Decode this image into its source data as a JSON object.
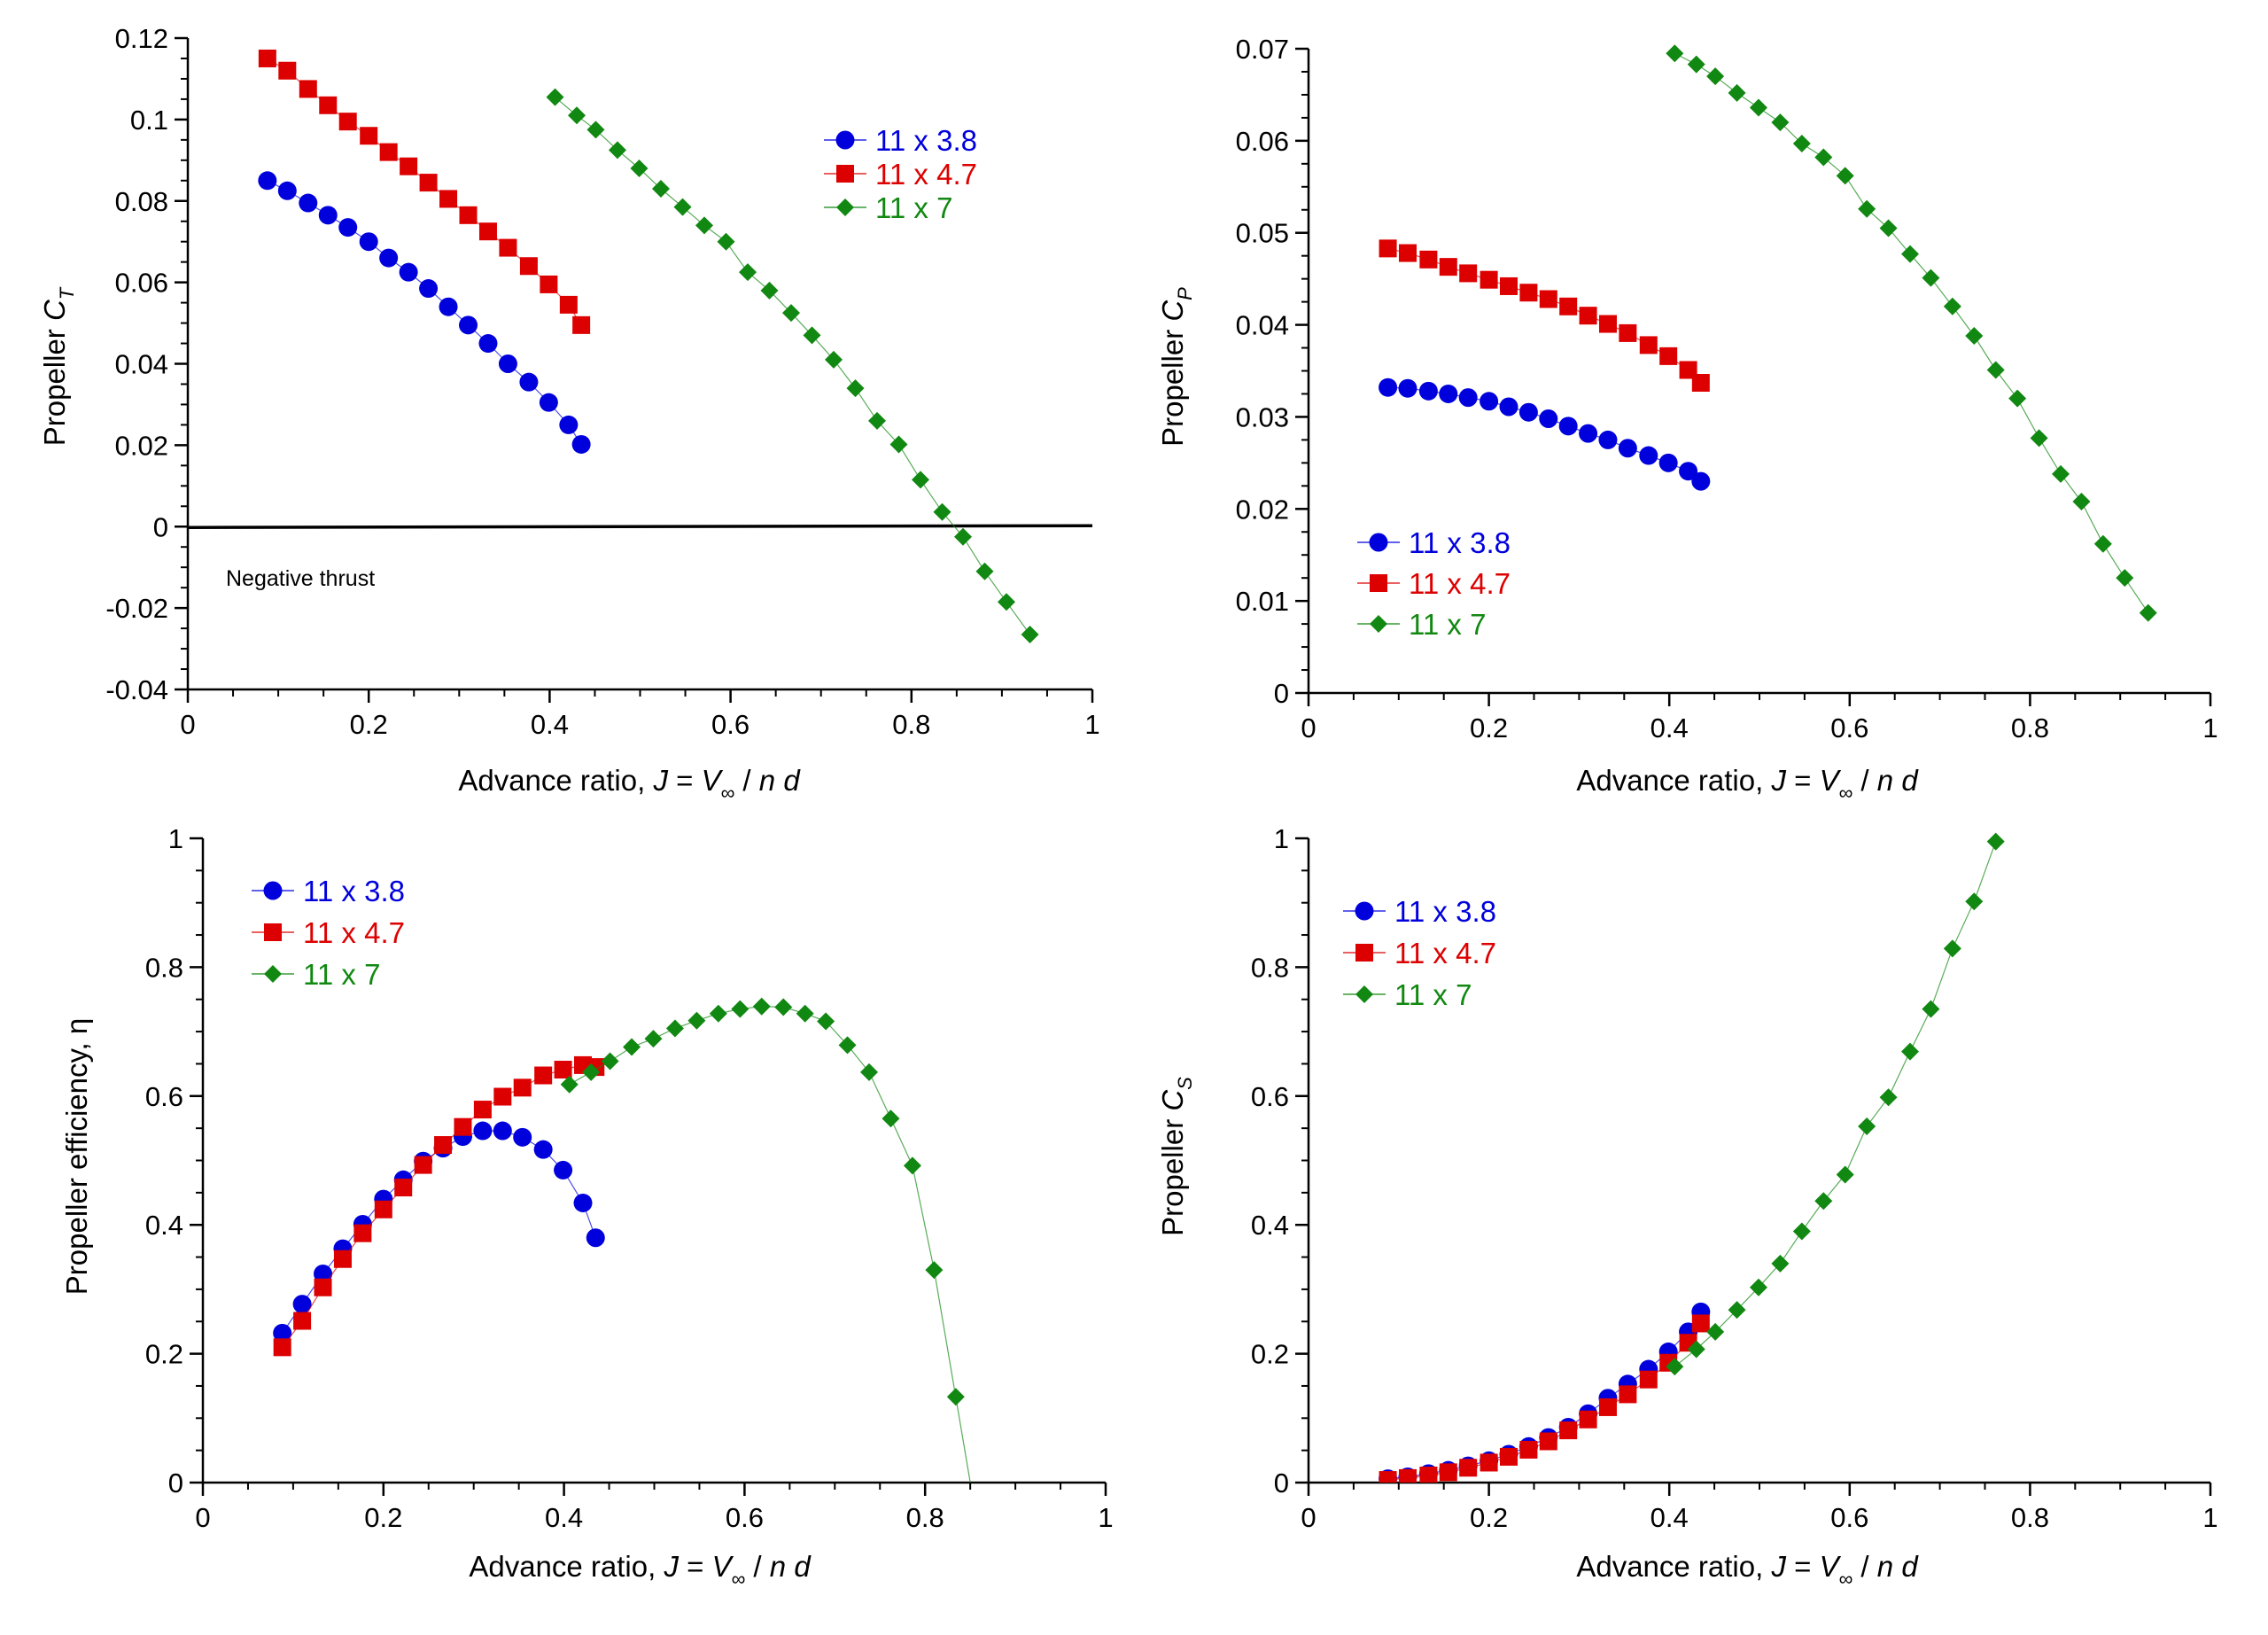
{
  "colors": {
    "s38": "#0000dd",
    "s47": "#dd0000",
    "s7": "#118811"
  },
  "chart_data": [
    {
      "type": "scatter",
      "panel": "top-left",
      "xlabel": {
        "pre": "Advance ratio, ",
        "J": "J",
        "eq1": " = ",
        "V": "V",
        "sub": "∞",
        "eq2": " / ",
        "n": "n",
        "sp": " ",
        "d": "d"
      },
      "ylabel": {
        "pre": "Propeller ",
        "C": "C",
        "sub": "T"
      },
      "xlim": [
        0,
        1
      ],
      "ylim": [
        -0.04,
        0.12
      ],
      "xticks": [
        "0",
        "0.2",
        "0.4",
        "0.6",
        "0.8",
        "1"
      ],
      "yticks": [
        "-0.04",
        "-0.02",
        "0",
        "0.02",
        "0.04",
        "0.06",
        "0.08",
        "0.1",
        "0.12"
      ],
      "legend_position": "top-right",
      "annotation": "Negative thrust",
      "zero_line": true,
      "series": [
        {
          "name": "11 x 3.8",
          "x": [
            0.088,
            0.11,
            0.133,
            0.155,
            0.177,
            0.2,
            0.222,
            0.244,
            0.266,
            0.288,
            0.31,
            0.332,
            0.354,
            0.377,
            0.399,
            0.421,
            0.435
          ],
          "y": [
            0.085,
            0.0825,
            0.0795,
            0.0765,
            0.0735,
            0.07,
            0.066,
            0.0625,
            0.0585,
            0.054,
            0.0495,
            0.045,
            0.04,
            0.0355,
            0.0305,
            0.025,
            0.0202
          ]
        },
        {
          "name": "11 x 4.7",
          "x": [
            0.088,
            0.11,
            0.133,
            0.155,
            0.177,
            0.2,
            0.222,
            0.244,
            0.266,
            0.288,
            0.31,
            0.332,
            0.354,
            0.377,
            0.399,
            0.421,
            0.435
          ],
          "y": [
            0.115,
            0.112,
            0.1075,
            0.1035,
            0.0995,
            0.096,
            0.092,
            0.0885,
            0.0845,
            0.0805,
            0.0765,
            0.0725,
            0.0685,
            0.064,
            0.0595,
            0.0545,
            0.0495
          ]
        },
        {
          "name": "11 x 7",
          "x": [
            0.406,
            0.43,
            0.451,
            0.475,
            0.499,
            0.523,
            0.547,
            0.571,
            0.595,
            0.619,
            0.643,
            0.667,
            0.69,
            0.714,
            0.738,
            0.762,
            0.786,
            0.81,
            0.834,
            0.857,
            0.881,
            0.905,
            0.931
          ],
          "y": [
            0.1055,
            0.101,
            0.0975,
            0.0925,
            0.088,
            0.083,
            0.0785,
            0.074,
            0.07,
            0.0625,
            0.058,
            0.0525,
            0.047,
            0.041,
            0.034,
            0.026,
            0.0202,
            0.0115,
            0.0036,
            -0.0025,
            -0.011,
            -0.0185,
            -0.0265
          ]
        }
      ]
    },
    {
      "type": "scatter",
      "panel": "top-right",
      "xlabel": {
        "pre": "Advance ratio, ",
        "J": "J",
        "eq1": " = ",
        "V": "V",
        "sub": "∞",
        "eq2": " / ",
        "n": "n",
        "sp": " ",
        "d": "d"
      },
      "ylabel": {
        "pre": "Propeller ",
        "C": "C",
        "sub": "P"
      },
      "xlim": [
        0,
        1
      ],
      "ylim": [
        0,
        0.07
      ],
      "xticks": [
        "0",
        "0.2",
        "0.4",
        "0.6",
        "0.8",
        "1"
      ],
      "yticks": [
        "0",
        "0.01",
        "0.02",
        "0.03",
        "0.04",
        "0.05",
        "0.06",
        "0.07"
      ],
      "legend_position": "lower-left",
      "series": [
        {
          "name": "11 x 3.8",
          "x": [
            0.088,
            0.11,
            0.133,
            0.155,
            0.177,
            0.2,
            0.222,
            0.244,
            0.266,
            0.288,
            0.31,
            0.332,
            0.354,
            0.377,
            0.399,
            0.421,
            0.435
          ],
          "y": [
            0.0332,
            0.0331,
            0.0328,
            0.0325,
            0.0321,
            0.0317,
            0.0311,
            0.0305,
            0.0298,
            0.029,
            0.0282,
            0.0275,
            0.0266,
            0.0258,
            0.025,
            0.0241,
            0.023
          ]
        },
        {
          "name": "11 x 4.7",
          "x": [
            0.088,
            0.11,
            0.133,
            0.155,
            0.177,
            0.2,
            0.222,
            0.244,
            0.266,
            0.288,
            0.31,
            0.332,
            0.354,
            0.377,
            0.399,
            0.421,
            0.435
          ],
          "y": [
            0.0483,
            0.0478,
            0.0471,
            0.0463,
            0.0456,
            0.0449,
            0.0442,
            0.0435,
            0.0428,
            0.042,
            0.041,
            0.0401,
            0.0391,
            0.0378,
            0.0366,
            0.0351,
            0.0337
          ]
        },
        {
          "name": "11 x 7",
          "x": [
            0.406,
            0.43,
            0.451,
            0.475,
            0.499,
            0.523,
            0.547,
            0.571,
            0.595,
            0.619,
            0.643,
            0.667,
            0.69,
            0.714,
            0.738,
            0.762,
            0.786,
            0.81,
            0.834,
            0.857,
            0.881,
            0.905,
            0.931
          ],
          "y": [
            0.0695,
            0.0683,
            0.067,
            0.0652,
            0.0636,
            0.062,
            0.0597,
            0.0582,
            0.0562,
            0.0526,
            0.0505,
            0.0477,
            0.0451,
            0.042,
            0.0388,
            0.0351,
            0.032,
            0.0277,
            0.0238,
            0.0208,
            0.0162,
            0.0125,
            0.0087
          ]
        }
      ]
    },
    {
      "type": "scatter",
      "panel": "bottom-left",
      "xlabel": {
        "pre": "Advance ratio, ",
        "J": "J",
        "eq1": " = ",
        "V": "V",
        "sub": "∞",
        "eq2": " / ",
        "n": "n",
        "sp": " ",
        "d": "d"
      },
      "ylabel": {
        "pre": "Propeller efficiency, ",
        "eta": "η"
      },
      "xlim": [
        0,
        1
      ],
      "ylim": [
        0,
        1
      ],
      "xticks": [
        "0",
        "0.2",
        "0.4",
        "0.6",
        "0.8",
        "1"
      ],
      "yticks": [
        "0",
        "0.2",
        "0.4",
        "0.6",
        "0.8",
        "1"
      ],
      "legend_position": "top-left",
      "series": [
        {
          "name": "11 x 3.8",
          "x": [
            0.088,
            0.11,
            0.133,
            0.155,
            0.177,
            0.2,
            0.222,
            0.244,
            0.266,
            0.288,
            0.31,
            0.332,
            0.354,
            0.377,
            0.399,
            0.421,
            0.435
          ],
          "y": [
            0.232,
            0.277,
            0.324,
            0.363,
            0.401,
            0.44,
            0.47,
            0.499,
            0.519,
            0.537,
            0.546,
            0.546,
            0.536,
            0.517,
            0.485,
            0.434,
            0.38
          ]
        },
        {
          "name": "11 x 4.7",
          "x": [
            0.088,
            0.11,
            0.133,
            0.155,
            0.177,
            0.2,
            0.222,
            0.244,
            0.266,
            0.288,
            0.31,
            0.332,
            0.354,
            0.377,
            0.399,
            0.421,
            0.435
          ],
          "y": [
            0.21,
            0.251,
            0.303,
            0.347,
            0.387,
            0.424,
            0.458,
            0.493,
            0.524,
            0.552,
            0.579,
            0.599,
            0.613,
            0.632,
            0.641,
            0.648,
            0.645
          ]
        },
        {
          "name": "11 x 7",
          "x": [
            0.406,
            0.43,
            0.451,
            0.475,
            0.499,
            0.523,
            0.547,
            0.571,
            0.595,
            0.619,
            0.643,
            0.667,
            0.69,
            0.714,
            0.738,
            0.762,
            0.786,
            0.81,
            0.834,
            0.85
          ],
          "y": [
            0.618,
            0.637,
            0.654,
            0.676,
            0.689,
            0.705,
            0.717,
            0.728,
            0.735,
            0.739,
            0.738,
            0.728,
            0.716,
            0.679,
            0.637,
            0.565,
            0.492,
            0.33,
            0.133,
            0.0
          ]
        }
      ]
    },
    {
      "type": "scatter",
      "panel": "bottom-right",
      "xlabel": {
        "pre": "Advance ratio, ",
        "J": "J",
        "eq1": " = ",
        "V": "V",
        "sub": "∞",
        "eq2": " / ",
        "n": "n",
        "sp": " ",
        "d": "d"
      },
      "ylabel": {
        "pre": "Propeller ",
        "C": "C",
        "sub": "S"
      },
      "xlim": [
        0,
        1
      ],
      "ylim": [
        0,
        1
      ],
      "xticks": [
        "0",
        "0.2",
        "0.4",
        "0.6",
        "0.8",
        "1"
      ],
      "yticks": [
        "0",
        "0.2",
        "0.4",
        "0.6",
        "0.8",
        "1"
      ],
      "legend_position": "top-left",
      "series": [
        {
          "name": "11 x 3.8",
          "x": [
            0.088,
            0.11,
            0.133,
            0.155,
            0.177,
            0.2,
            0.222,
            0.244,
            0.266,
            0.288,
            0.31,
            0.332,
            0.354,
            0.377,
            0.399,
            0.421,
            0.435
          ],
          "y": [
            0.006,
            0.009,
            0.014,
            0.019,
            0.026,
            0.034,
            0.044,
            0.056,
            0.07,
            0.086,
            0.107,
            0.131,
            0.153,
            0.176,
            0.203,
            0.234,
            0.265
          ]
        },
        {
          "name": "11 x 4.7",
          "x": [
            0.088,
            0.11,
            0.133,
            0.155,
            0.177,
            0.2,
            0.222,
            0.244,
            0.266,
            0.288,
            0.31,
            0.332,
            0.354,
            0.377,
            0.399,
            0.421,
            0.435
          ],
          "y": [
            0.004,
            0.007,
            0.011,
            0.016,
            0.023,
            0.031,
            0.04,
            0.051,
            0.064,
            0.081,
            0.098,
            0.117,
            0.137,
            0.16,
            0.186,
            0.217,
            0.247
          ]
        },
        {
          "name": "11 x 7",
          "x": [
            0.406,
            0.43,
            0.451,
            0.475,
            0.499,
            0.523,
            0.547,
            0.571,
            0.595,
            0.619,
            0.643,
            0.667,
            0.69,
            0.714,
            0.738,
            0.762
          ],
          "y": [
            0.18,
            0.207,
            0.234,
            0.268,
            0.303,
            0.34,
            0.39,
            0.437,
            0.478,
            0.553,
            0.598,
            0.669,
            0.735,
            0.829,
            0.902,
            0.995
          ]
        }
      ]
    }
  ]
}
